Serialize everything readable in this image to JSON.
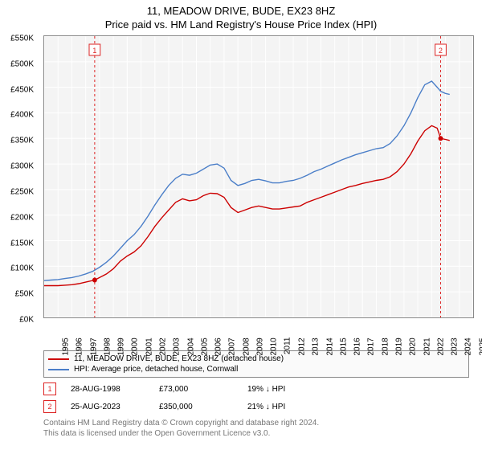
{
  "title": "11, MEADOW DRIVE, BUDE, EX23 8HZ",
  "subtitle": "Price paid vs. HM Land Registry's House Price Index (HPI)",
  "chart": {
    "type": "line",
    "background_color": "#f4f4f4",
    "border_color": "#888888",
    "grid_color": "#ffffff",
    "label_fontsize": 10,
    "ylim": [
      0,
      550
    ],
    "ytick_step": 50,
    "ytick_prefix": "£",
    "ytick_suffix": "K",
    "xlim": [
      1995,
      2026
    ],
    "xtick_step": 1,
    "markers": [
      {
        "id": "1",
        "x": 1998.65,
        "color": "#d22",
        "dashed": true
      },
      {
        "id": "2",
        "x": 2023.65,
        "color": "#d22",
        "dashed": true
      }
    ],
    "series": [
      {
        "name": "price_paid",
        "label": "11, MEADOW DRIVE, BUDE, EX23 8HZ (detached house)",
        "color": "#cc0000",
        "line_width": 1.4,
        "points": [
          [
            1995.0,
            62
          ],
          [
            1995.5,
            62
          ],
          [
            1996.0,
            62
          ],
          [
            1996.5,
            63
          ],
          [
            1997.0,
            64
          ],
          [
            1997.5,
            66
          ],
          [
            1998.0,
            69
          ],
          [
            1998.65,
            73
          ],
          [
            1999.0,
            78
          ],
          [
            1999.5,
            85
          ],
          [
            2000.0,
            95
          ],
          [
            2000.5,
            110
          ],
          [
            2001.0,
            120
          ],
          [
            2001.5,
            128
          ],
          [
            2002.0,
            140
          ],
          [
            2002.5,
            158
          ],
          [
            2003.0,
            178
          ],
          [
            2003.5,
            195
          ],
          [
            2004.0,
            210
          ],
          [
            2004.5,
            225
          ],
          [
            2005.0,
            232
          ],
          [
            2005.5,
            228
          ],
          [
            2006.0,
            230
          ],
          [
            2006.5,
            238
          ],
          [
            2007.0,
            243
          ],
          [
            2007.5,
            242
          ],
          [
            2008.0,
            235
          ],
          [
            2008.5,
            215
          ],
          [
            2009.0,
            205
          ],
          [
            2009.5,
            210
          ],
          [
            2010.0,
            215
          ],
          [
            2010.5,
            218
          ],
          [
            2011.0,
            215
          ],
          [
            2011.5,
            212
          ],
          [
            2012.0,
            212
          ],
          [
            2012.5,
            214
          ],
          [
            2013.0,
            216
          ],
          [
            2013.5,
            218
          ],
          [
            2014.0,
            225
          ],
          [
            2014.5,
            230
          ],
          [
            2015.0,
            235
          ],
          [
            2015.5,
            240
          ],
          [
            2016.0,
            245
          ],
          [
            2016.5,
            250
          ],
          [
            2017.0,
            255
          ],
          [
            2017.5,
            258
          ],
          [
            2018.0,
            262
          ],
          [
            2018.5,
            265
          ],
          [
            2019.0,
            268
          ],
          [
            2019.5,
            270
          ],
          [
            2020.0,
            275
          ],
          [
            2020.5,
            285
          ],
          [
            2021.0,
            300
          ],
          [
            2021.5,
            320
          ],
          [
            2022.0,
            345
          ],
          [
            2022.5,
            365
          ],
          [
            2023.0,
            375
          ],
          [
            2023.4,
            370
          ],
          [
            2023.65,
            350
          ],
          [
            2024.0,
            348
          ],
          [
            2024.3,
            346
          ]
        ]
      },
      {
        "name": "hpi",
        "label": "HPI: Average price, detached house, Cornwall",
        "color": "#4a7ec8",
        "line_width": 1.4,
        "points": [
          [
            1995.0,
            72
          ],
          [
            1995.5,
            73
          ],
          [
            1996.0,
            74
          ],
          [
            1996.5,
            76
          ],
          [
            1997.0,
            78
          ],
          [
            1997.5,
            81
          ],
          [
            1998.0,
            85
          ],
          [
            1998.5,
            90
          ],
          [
            1999.0,
            98
          ],
          [
            1999.5,
            108
          ],
          [
            2000.0,
            120
          ],
          [
            2000.5,
            135
          ],
          [
            2001.0,
            150
          ],
          [
            2001.5,
            162
          ],
          [
            2002.0,
            178
          ],
          [
            2002.5,
            198
          ],
          [
            2003.0,
            220
          ],
          [
            2003.5,
            240
          ],
          [
            2004.0,
            258
          ],
          [
            2004.5,
            272
          ],
          [
            2005.0,
            280
          ],
          [
            2005.5,
            278
          ],
          [
            2006.0,
            282
          ],
          [
            2006.5,
            290
          ],
          [
            2007.0,
            298
          ],
          [
            2007.5,
            300
          ],
          [
            2008.0,
            292
          ],
          [
            2008.5,
            268
          ],
          [
            2009.0,
            258
          ],
          [
            2009.5,
            262
          ],
          [
            2010.0,
            268
          ],
          [
            2010.5,
            270
          ],
          [
            2011.0,
            267
          ],
          [
            2011.5,
            263
          ],
          [
            2012.0,
            263
          ],
          [
            2012.5,
            266
          ],
          [
            2013.0,
            268
          ],
          [
            2013.5,
            272
          ],
          [
            2014.0,
            278
          ],
          [
            2014.5,
            285
          ],
          [
            2015.0,
            290
          ],
          [
            2015.5,
            296
          ],
          [
            2016.0,
            302
          ],
          [
            2016.5,
            308
          ],
          [
            2017.0,
            313
          ],
          [
            2017.5,
            318
          ],
          [
            2018.0,
            322
          ],
          [
            2018.5,
            326
          ],
          [
            2019.0,
            330
          ],
          [
            2019.5,
            332
          ],
          [
            2020.0,
            340
          ],
          [
            2020.5,
            355
          ],
          [
            2021.0,
            375
          ],
          [
            2021.5,
            400
          ],
          [
            2022.0,
            430
          ],
          [
            2022.5,
            455
          ],
          [
            2023.0,
            462
          ],
          [
            2023.4,
            450
          ],
          [
            2023.65,
            442
          ],
          [
            2024.0,
            438
          ],
          [
            2024.3,
            436
          ]
        ]
      }
    ]
  },
  "sales": [
    {
      "marker": "1",
      "date": "28-AUG-1998",
      "price": "£73,000",
      "vs_hpi": "19% ↓ HPI",
      "color": "#d22"
    },
    {
      "marker": "2",
      "date": "25-AUG-2023",
      "price": "£350,000",
      "vs_hpi": "21% ↓ HPI",
      "color": "#d22"
    }
  ],
  "license_line1": "Contains HM Land Registry data © Crown copyright and database right 2024.",
  "license_line2": "This data is licensed under the Open Government Licence v3.0."
}
